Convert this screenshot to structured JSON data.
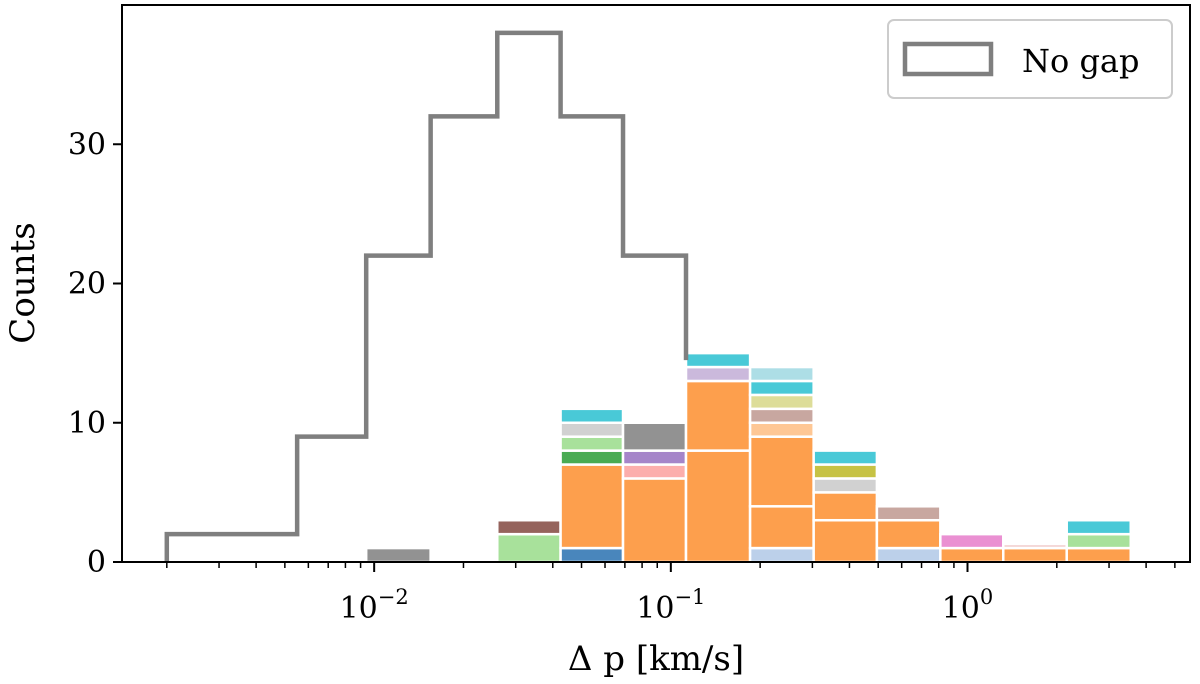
{
  "chart_data": {
    "type": "bar",
    "xscale": "log",
    "xlabel": "Δ p [km/s]",
    "ylabel": "Counts",
    "xlim_log10": [
      -2.85,
      0.75
    ],
    "ylim": [
      0,
      40
    ],
    "x_ticks": [
      {
        "base": "10",
        "exp": "−2",
        "value": 0.01
      },
      {
        "base": "10",
        "exp": "−1",
        "value": 0.1
      },
      {
        "base": "10",
        "exp": "0",
        "value": 1
      }
    ],
    "y_ticks": [
      0,
      10,
      20,
      30
    ],
    "bin_edges": [
      0.002,
      0.0033,
      0.0055,
      0.0094,
      0.0155,
      0.026,
      0.0425,
      0.069,
      0.1125,
      0.185,
      0.303,
      0.495,
      0.81,
      1.32,
      2.16,
      3.55
    ],
    "no_gap_counts": [
      2,
      2,
      9,
      22,
      32,
      38,
      32,
      22,
      0,
      0,
      0,
      0,
      0,
      0,
      0
    ],
    "stacked_bins": [
      {
        "bin": 3,
        "segments": [
          {
            "value": 1,
            "color": "#8c8c8c"
          }
        ]
      },
      {
        "bin": 5,
        "segments": [
          {
            "value": 2,
            "color": "#a3df96"
          },
          {
            "value": 1,
            "color": "#8f5b53"
          }
        ]
      },
      {
        "bin": 6,
        "segments": [
          {
            "value": 1,
            "color": "#3f80b8"
          },
          {
            "value": 6,
            "color": "#fd9a43"
          },
          {
            "value": 1,
            "color": "#3fa64a"
          },
          {
            "value": 1,
            "color": "#a3df96"
          },
          {
            "value": 1,
            "color": "#cfcfcf"
          },
          {
            "value": 1,
            "color": "#3fc6d5"
          }
        ]
      },
      {
        "bin": 7,
        "segments": [
          {
            "value": 6,
            "color": "#fd9a43"
          },
          {
            "value": 1,
            "color": "#fcaaa8"
          },
          {
            "value": 1,
            "color": "#a07ec6"
          },
          {
            "value": 2,
            "color": "#8c8c8c"
          }
        ]
      },
      {
        "bin": 8,
        "segments": [
          {
            "value": 8,
            "color": "#fd9a43"
          },
          {
            "value": 5,
            "color": "#fd9a43"
          },
          {
            "value": 1,
            "color": "#c8b5da"
          },
          {
            "value": 1,
            "color": "#3fc6d5"
          }
        ]
      },
      {
        "bin": 9,
        "segments": [
          {
            "value": 1,
            "color": "#b8cde9"
          },
          {
            "value": 3,
            "color": "#fd9a43"
          },
          {
            "value": 5,
            "color": "#fd9a43"
          },
          {
            "value": 1,
            "color": "#fec48f"
          },
          {
            "value": 1,
            "color": "#c5a29b"
          },
          {
            "value": 1,
            "color": "#dbdb94"
          },
          {
            "value": 1,
            "color": "#3fc6d5"
          },
          {
            "value": 1,
            "color": "#a9dce5"
          }
        ]
      },
      {
        "bin": 10,
        "segments": [
          {
            "value": 3,
            "color": "#fd9a43"
          },
          {
            "value": 2,
            "color": "#fd9a43"
          },
          {
            "value": 1,
            "color": "#cfcfcf"
          },
          {
            "value": 1,
            "color": "#c3bf3a"
          },
          {
            "value": 1,
            "color": "#3fc6d5"
          }
        ]
      },
      {
        "bin": 11,
        "segments": [
          {
            "value": 1,
            "color": "#b8cde9"
          },
          {
            "value": 2,
            "color": "#fd9a43"
          },
          {
            "value": 1,
            "color": "#c5a29b"
          }
        ]
      },
      {
        "bin": 12,
        "segments": [
          {
            "value": 1,
            "color": "#fd9a43"
          },
          {
            "value": 1,
            "color": "#e98ad0"
          }
        ]
      },
      {
        "bin": 13,
        "segments": [
          {
            "value": 1,
            "color": "#fd9a43"
          },
          {
            "value": 0.3,
            "color": "#f2d0cf"
          }
        ]
      },
      {
        "bin": 14,
        "segments": [
          {
            "value": 1,
            "color": "#fd9a43"
          },
          {
            "value": 1,
            "color": "#a3df96"
          },
          {
            "value": 1,
            "color": "#3fc6d5"
          }
        ]
      }
    ],
    "legend": {
      "label": "No gap",
      "position": "top-right"
    },
    "colors": {
      "no_gap_line": "#7f7f7f",
      "bar_edge": "#ffffff",
      "axis": "#000000",
      "legend_border": "#cccccc"
    }
  }
}
